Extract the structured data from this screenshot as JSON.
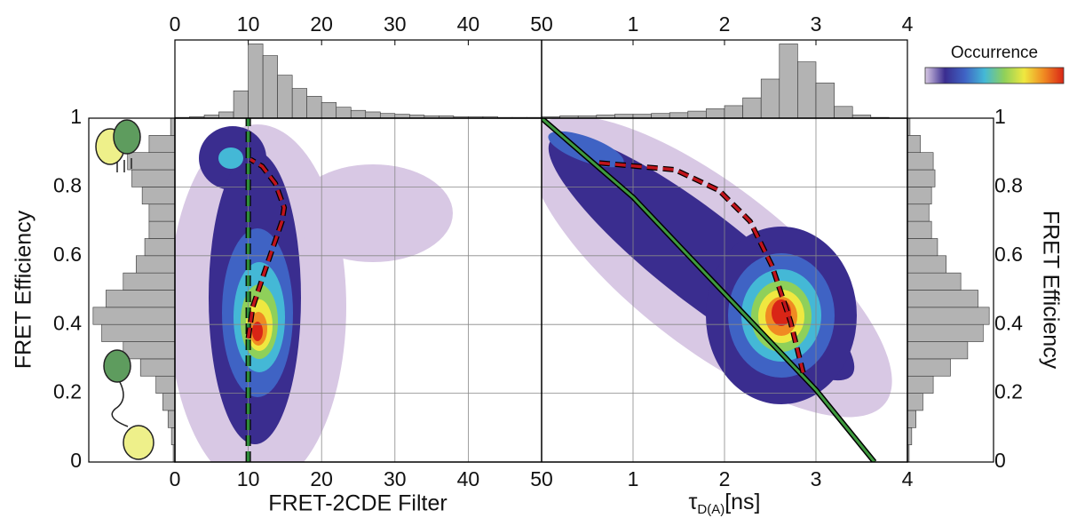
{
  "chart_data": [
    {
      "type": "line",
      "xlabel": "FRET-2CDE Filter",
      "ylabel": "FRET Efficiency",
      "xlim": [
        0,
        50
      ],
      "xticks": [
        0,
        10,
        20,
        30,
        40,
        50
      ],
      "ylim": [
        0,
        1
      ],
      "yticks": [
        0,
        0.2,
        0.4,
        0.6,
        0.8,
        1
      ],
      "grid": true,
      "series": [
        {
          "color": "#2e8b3a",
          "dash": true,
          "x": [
            10,
            10
          ],
          "y": [
            0,
            1
          ]
        },
        {
          "color": "#c0141c",
          "dash": true,
          "x": [
            10,
            10.6,
            12.5,
            14.6,
            14.9,
            13.7,
            11.9,
            10.3
          ],
          "y": [
            0.36,
            0.45,
            0.57,
            0.7,
            0.74,
            0.81,
            0.86,
            0.88
          ]
        }
      ],
      "top_histogram": {
        "color": "#b3b3b3",
        "bins": [
          0,
          2,
          4,
          6,
          8,
          10,
          12,
          14,
          16,
          18,
          20,
          22,
          24,
          26,
          28,
          30,
          32,
          34,
          36,
          38,
          40,
          42,
          44,
          46,
          48,
          50
        ],
        "values": [
          1,
          2,
          4,
          8,
          35,
          95,
          80,
          55,
          38,
          28,
          20,
          14,
          10,
          8,
          6,
          5,
          4,
          3,
          3,
          2,
          2,
          2,
          1,
          1,
          1
        ]
      },
      "side_histogram": {
        "color": "#b3b3b3",
        "bins": [
          0,
          0.05,
          0.1,
          0.15,
          0.2,
          0.25,
          0.3,
          0.35,
          0.4,
          0.45,
          0.5,
          0.55,
          0.6,
          0.65,
          0.7,
          0.75,
          0.8,
          0.85,
          0.9,
          0.95,
          1
        ],
        "values": [
          2,
          4,
          8,
          14,
          22,
          40,
          60,
          85,
          95,
          80,
          60,
          45,
          35,
          30,
          30,
          38,
          50,
          55,
          30,
          5
        ]
      }
    },
    {
      "type": "line",
      "xlabel": "τ",
      "xlabel_sub": "D(A)",
      "xlabel_unit": "[ns]",
      "ylabel": "FRET Efficiency",
      "xlim": [
        0,
        4
      ],
      "xticks": [
        1,
        2,
        3,
        4
      ],
      "ylim": [
        0,
        1
      ],
      "yticks": [
        0,
        0.2,
        0.4,
        0.6,
        0.8,
        1
      ],
      "grid": true,
      "series": [
        {
          "color": "#1f5a1f",
          "dash": false,
          "x": [
            0,
            1,
            2,
            3,
            3.64
          ],
          "y": [
            1,
            0.77,
            0.49,
            0.21,
            0
          ]
        },
        {
          "color": "#c0141c",
          "dash": true,
          "x": [
            0.63,
            1.46,
            1.94,
            2.28,
            2.52,
            2.72,
            2.86
          ],
          "y": [
            0.87,
            0.85,
            0.79,
            0.7,
            0.57,
            0.41,
            0.26
          ]
        }
      ],
      "top_histogram": {
        "color": "#b3b3b3",
        "bins": [
          0,
          0.2,
          0.4,
          0.6,
          0.8,
          1,
          1.2,
          1.4,
          1.6,
          1.8,
          2,
          2.2,
          2.4,
          2.6,
          2.8,
          3,
          3.2,
          3.4,
          3.6,
          3.8,
          4
        ],
        "values": [
          2,
          3,
          3,
          4,
          5,
          5,
          6,
          7,
          9,
          12,
          16,
          26,
          50,
          95,
          72,
          45,
          15,
          4,
          1,
          0
        ]
      },
      "side_histogram": {
        "color": "#b3b3b3",
        "bins": [
          0,
          0.05,
          0.1,
          0.15,
          0.2,
          0.25,
          0.3,
          0.35,
          0.4,
          0.45,
          0.5,
          0.55,
          0.6,
          0.65,
          0.7,
          0.75,
          0.8,
          0.85,
          0.9,
          0.95,
          1
        ],
        "values": [
          2,
          5,
          10,
          18,
          30,
          50,
          70,
          88,
          95,
          82,
          62,
          45,
          35,
          28,
          25,
          28,
          32,
          30,
          15,
          3
        ]
      },
      "colorbar_label": "Occurrence",
      "colormap": [
        "#d8c8e4",
        "#3a2d8f",
        "#3f63c4",
        "#44b8d6",
        "#8fd05a",
        "#efe840",
        "#f08a22",
        "#d92516"
      ]
    }
  ]
}
